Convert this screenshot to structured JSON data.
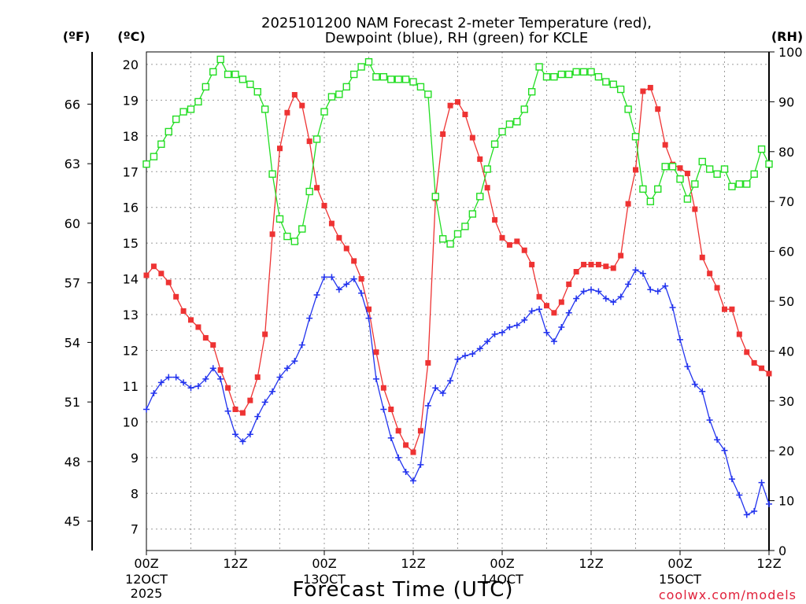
{
  "header": {
    "title_line1": "2025101200 NAM Forecast 2-meter Temperature (red),",
    "title_line2": "Dewpoint (blue), RH (green) for KCLE"
  },
  "axes": {
    "f_unit": "(ºF)",
    "c_unit": "(ºC)",
    "rh_unit": "(RH)",
    "x_label": "Forecast Time (UTC)",
    "credit": "coolwx.com/models"
  },
  "colors": {
    "temp": "#ee3333",
    "dewpoint": "#2233ee",
    "rh": "#22dd22"
  },
  "chart_data": {
    "type": "line",
    "title": "2025101200 NAM Forecast 2-meter Temperature (red), Dewpoint (blue), RH (green) for KCLE",
    "xlabel": "Forecast Time (UTC)",
    "x_unit": "forecast hour",
    "x_step_hours": 1,
    "xlim": [
      0,
      84
    ],
    "x_ticks": [
      {
        "hour": 0,
        "label": "00Z",
        "sub": [
          "12OCT",
          "2025"
        ]
      },
      {
        "hour": 12,
        "label": "12Z",
        "sub": []
      },
      {
        "hour": 24,
        "label": "00Z",
        "sub": [
          "13OCT"
        ]
      },
      {
        "hour": 36,
        "label": "12Z",
        "sub": []
      },
      {
        "hour": 48,
        "label": "00Z",
        "sub": [
          "14OCT"
        ]
      },
      {
        "hour": 60,
        "label": "12Z",
        "sub": []
      },
      {
        "hour": 72,
        "label": "00Z",
        "sub": [
          "15OCT"
        ]
      },
      {
        "hour": 84,
        "label": "12Z",
        "sub": []
      }
    ],
    "y_celsius": {
      "label": "(ºC)",
      "lim": [
        6.4,
        20.35
      ],
      "ticks": [
        7,
        8,
        9,
        10,
        11,
        12,
        13,
        14,
        15,
        16,
        17,
        18,
        19,
        20
      ]
    },
    "y_fahrenheit": {
      "label": "(ºF)",
      "ticks": [
        45,
        48,
        51,
        54,
        57,
        60,
        63,
        66
      ]
    },
    "y_rh": {
      "label": "(RH)",
      "lim": [
        0,
        100
      ],
      "ticks": [
        0,
        10,
        20,
        30,
        40,
        50,
        60,
        70,
        80,
        90,
        100
      ]
    },
    "series": [
      {
        "name": "2-meter Temperature",
        "unit": "°C",
        "axis": "celsius",
        "marker": "filled-square",
        "color": "#ee3333",
        "values": [
          14.1,
          14.35,
          14.15,
          13.9,
          13.5,
          13.1,
          12.85,
          12.65,
          12.35,
          12.15,
          11.45,
          10.95,
          10.35,
          10.25,
          10.6,
          11.25,
          12.45,
          15.25,
          17.65,
          18.65,
          19.15,
          18.85,
          17.85,
          16.55,
          16.05,
          15.55,
          15.15,
          14.85,
          14.5,
          14.0,
          13.15,
          11.95,
          10.95,
          10.35,
          9.75,
          9.35,
          9.15,
          9.75,
          11.65,
          16.25,
          18.05,
          18.85,
          18.95,
          18.6,
          17.95,
          17.35,
          16.55,
          15.65,
          15.15,
          14.95,
          15.05,
          14.8,
          14.4,
          13.5,
          13.25,
          13.05,
          13.35,
          13.85,
          14.2,
          14.4,
          14.4,
          14.4,
          14.35,
          14.3,
          14.65,
          16.1,
          17.05,
          19.25,
          19.35,
          18.75,
          17.75,
          17.2,
          17.1,
          16.95,
          15.95,
          14.6,
          14.15,
          13.75,
          13.15,
          13.15,
          12.45,
          11.95,
          11.65,
          11.5,
          11.35
        ]
      },
      {
        "name": "Dewpoint",
        "unit": "°C",
        "axis": "celsius",
        "marker": "plus",
        "color": "#2233ee",
        "values": [
          10.35,
          10.8,
          11.1,
          11.25,
          11.25,
          11.1,
          10.95,
          11.0,
          11.2,
          11.5,
          11.2,
          10.3,
          9.65,
          9.45,
          9.65,
          10.15,
          10.55,
          10.85,
          11.25,
          11.5,
          11.7,
          12.15,
          12.9,
          13.55,
          14.05,
          14.05,
          13.7,
          13.85,
          14.0,
          13.6,
          12.9,
          11.2,
          10.35,
          9.55,
          9.0,
          8.6,
          8.35,
          8.8,
          10.45,
          10.95,
          10.8,
          11.15,
          11.75,
          11.85,
          11.9,
          12.05,
          12.25,
          12.45,
          12.5,
          12.65,
          12.7,
          12.85,
          13.1,
          13.15,
          12.5,
          12.25,
          12.65,
          13.05,
          13.45,
          13.65,
          13.7,
          13.65,
          13.45,
          13.35,
          13.5,
          13.85,
          14.25,
          14.15,
          13.7,
          13.65,
          13.8,
          13.2,
          12.3,
          11.55,
          11.05,
          10.85,
          10.05,
          9.5,
          9.2,
          8.4,
          7.95,
          7.4,
          7.5,
          8.3,
          7.7
        ]
      },
      {
        "name": "Relative Humidity",
        "unit": "%",
        "axis": "rh",
        "marker": "open-square",
        "color": "#22dd22",
        "values": [
          77.5,
          79.0,
          81.5,
          84.0,
          86.5,
          88.0,
          88.5,
          90.0,
          93.0,
          96.0,
          98.5,
          95.5,
          95.5,
          94.5,
          93.5,
          92.0,
          88.5,
          75.5,
          66.5,
          63.0,
          62.0,
          64.5,
          72.0,
          82.5,
          88.0,
          91.0,
          91.5,
          93.0,
          95.5,
          97.0,
          98.0,
          95.0,
          95.0,
          94.5,
          94.5,
          94.5,
          94.0,
          93.0,
          91.5,
          71.0,
          62.5,
          61.5,
          63.5,
          65.0,
          67.5,
          71.0,
          76.5,
          81.5,
          84.0,
          85.5,
          86.0,
          88.5,
          92.0,
          97.0,
          95.0,
          95.0,
          95.5,
          95.5,
          96.0,
          96.0,
          96.0,
          95.0,
          94.0,
          93.5,
          92.5,
          88.5,
          83.0,
          72.5,
          70.0,
          72.5,
          77.0,
          77.0,
          74.5,
          70.5,
          73.5,
          78.0,
          76.5,
          75.5,
          76.5,
          73.0,
          73.5,
          73.5,
          75.5,
          80.5,
          77.5
        ]
      }
    ]
  }
}
